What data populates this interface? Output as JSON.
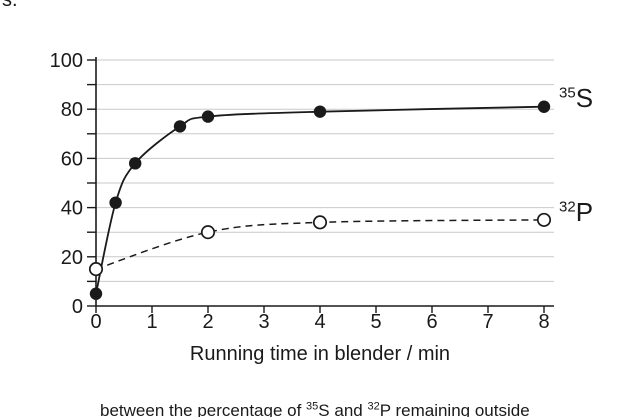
{
  "page": {
    "top_text_fragment": "s.",
    "caption_fragment_segments": [
      {
        "text": "between the percentage of "
      },
      {
        "sup": "35"
      },
      {
        "text": "S and "
      },
      {
        "sup": "32"
      },
      {
        "text": "P remaining outside"
      }
    ]
  },
  "chart_data": {
    "type": "line",
    "title": "",
    "xlabel": "Running time in blender / min",
    "ylabel": "",
    "xlim": [
      0,
      8
    ],
    "ylim": [
      0,
      100
    ],
    "x_ticks": [
      0,
      1,
      2,
      3,
      4,
      5,
      6,
      7,
      8
    ],
    "x_tick_labels": [
      "0",
      "1",
      "2",
      "3",
      "4",
      "5",
      "6",
      "7",
      "8"
    ],
    "y_minor_tick_step": 10,
    "y_tick_labels": [
      "0",
      "20",
      "40",
      "60",
      "80",
      "100"
    ],
    "y_label_values": [
      0,
      20,
      40,
      60,
      80,
      100
    ],
    "grid": "horizontal gridlines every 10 units",
    "legend_position": "labels at right end of each curve",
    "series": [
      {
        "name": "35S",
        "isotope": {
          "sup": "35",
          "symbol": "S"
        },
        "line_style": "solid",
        "marker": "filled-circle",
        "x": [
          0,
          0.35,
          0.7,
          1.5,
          2,
          4,
          8
        ],
        "y": [
          5,
          42,
          58,
          73,
          77,
          79,
          81
        ]
      },
      {
        "name": "32P",
        "isotope": {
          "sup": "32",
          "symbol": "P"
        },
        "line_style": "dashed",
        "marker": "open-circle",
        "x": [
          0,
          2,
          4,
          8
        ],
        "y": [
          15,
          30,
          34,
          35
        ]
      }
    ],
    "colors": {
      "line": "#1a1a1a",
      "grid": "#c9c9c9",
      "text": "#1a1a1a",
      "background": "#ffffff"
    }
  }
}
